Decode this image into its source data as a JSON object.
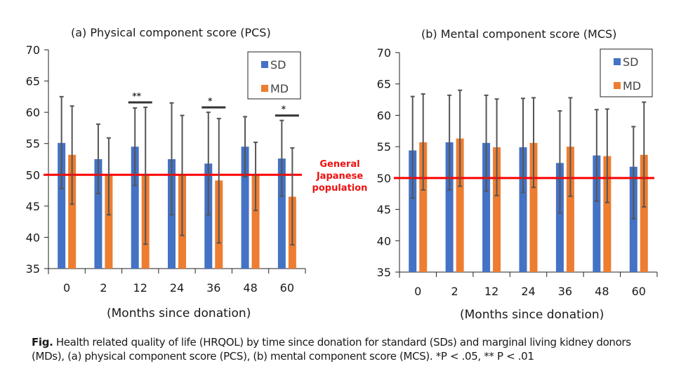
{
  "chart_data": [
    {
      "type": "bar",
      "id": "pcs",
      "title": "(a) Physical component score (PCS)",
      "xlabel": "(Months since donation)",
      "ylabel": "",
      "categories": [
        "0",
        "2",
        "12",
        "24",
        "36",
        "48",
        "60"
      ],
      "ylim": [
        35,
        70
      ],
      "yticks": [
        35,
        40,
        45,
        50,
        55,
        60,
        65,
        70
      ],
      "grid": false,
      "legend": "top-right",
      "series": [
        {
          "name": "SD",
          "color": "#4472c4",
          "values": [
            55.1,
            52.5,
            54.5,
            52.5,
            51.8,
            54.5,
            52.6
          ],
          "error_upper": [
            62.5,
            58.1,
            60.7,
            61.5,
            60.0,
            59.3,
            58.7
          ],
          "error_lower": [
            47.8,
            47.0,
            48.3,
            43.6,
            43.6,
            49.7,
            46.6
          ]
        },
        {
          "name": "MD",
          "color": "#ed7d31",
          "values": [
            53.2,
            50.0,
            50.0,
            49.9,
            49.1,
            49.9,
            46.5
          ],
          "error_upper": [
            61.0,
            55.9,
            60.8,
            59.5,
            59.0,
            55.2,
            54.3
          ],
          "error_lower": [
            45.3,
            43.6,
            38.9,
            40.3,
            39.1,
            44.3,
            38.8
          ]
        }
      ],
      "reference_line": {
        "value": 50,
        "color": "#ff0000",
        "label_lines": [
          "General",
          "Japanese",
          "population"
        ]
      },
      "significance": [
        {
          "category": "12",
          "label": "**"
        },
        {
          "category": "36",
          "label": "*"
        },
        {
          "category": "60",
          "label": "*"
        }
      ]
    },
    {
      "type": "bar",
      "id": "mcs",
      "title": "(b) Mental component score (MCS)",
      "xlabel": "(Months since donation)",
      "ylabel": "",
      "categories": [
        "0",
        "2",
        "12",
        "24",
        "36",
        "48",
        "60"
      ],
      "ylim": [
        35,
        70
      ],
      "yticks": [
        35,
        40,
        45,
        50,
        55,
        60,
        65,
        70
      ],
      "grid": false,
      "legend": "top-right",
      "series": [
        {
          "name": "SD",
          "color": "#4472c4",
          "values": [
            54.4,
            55.7,
            55.6,
            54.9,
            52.4,
            53.6,
            51.8
          ],
          "error_upper": [
            63.0,
            63.2,
            63.2,
            62.7,
            60.7,
            60.9,
            58.2
          ],
          "error_lower": [
            46.8,
            48.1,
            47.9,
            47.7,
            44.4,
            46.3,
            43.5
          ]
        },
        {
          "name": "MD",
          "color": "#ed7d31",
          "values": [
            55.7,
            56.3,
            54.9,
            55.6,
            55.0,
            53.5,
            53.7
          ],
          "error_upper": [
            63.4,
            64.0,
            62.6,
            62.8,
            62.8,
            61.0,
            62.1
          ],
          "error_lower": [
            48.1,
            48.7,
            47.2,
            48.5,
            47.1,
            46.1,
            45.4
          ]
        }
      ],
      "reference_line": {
        "value": 50,
        "color": "#ff0000"
      },
      "significance": []
    }
  ],
  "caption": {
    "prefix": "Fig.",
    "text": " Health related quality of life (HRQOL) by time since donation for standard (SDs) and marginal living kidney donors (MDs), (a) physical component score (PCS), (b) mental component score (MCS). *P < .05, ** P < .01"
  }
}
